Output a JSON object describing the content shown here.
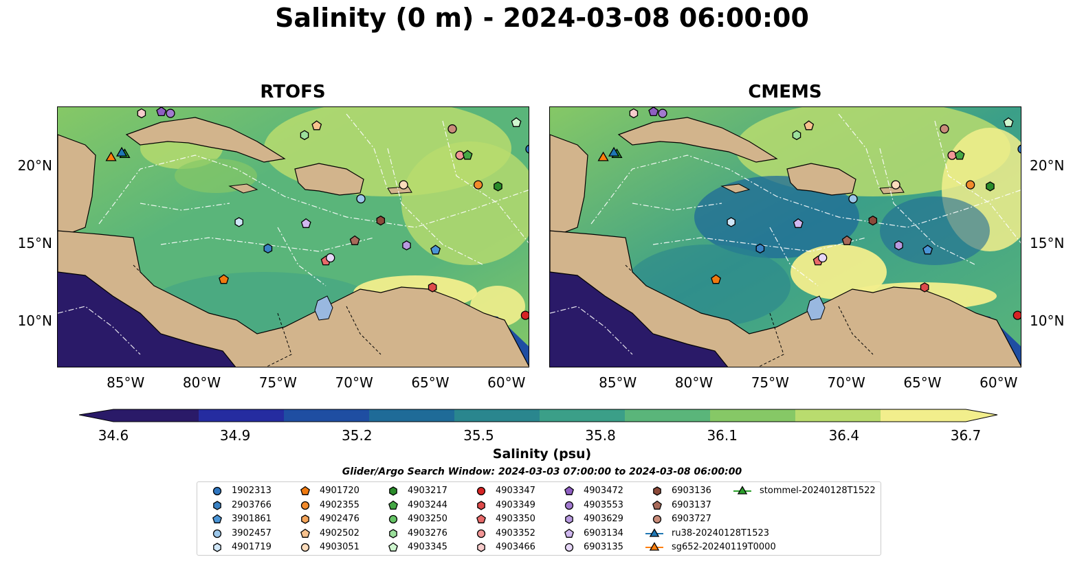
{
  "title": "Salinity (0 m) - 2024-03-08 06:00:00",
  "panels": [
    {
      "title": "RTOFS"
    },
    {
      "title": "CMEMS"
    }
  ],
  "axes": {
    "lon_labels": [
      "85°W",
      "80°W",
      "75°W",
      "70°W",
      "65°W",
      "60°W"
    ],
    "lat_labels": [
      "20°N",
      "15°N",
      "10°N"
    ],
    "extent": {
      "lon_min": -89.5,
      "lon_max": -58.5,
      "lat_min": 7.0,
      "lat_max": 23.8
    }
  },
  "colorbar": {
    "label": "Salinity (psu)",
    "ticks": [
      "34.6",
      "34.9",
      "35.2",
      "35.5",
      "35.8",
      "36.1",
      "36.4",
      "36.7"
    ],
    "vmin": 34.6,
    "vmax": 36.7,
    "colormap": [
      "#2a1a68",
      "#252ca0",
      "#1f4ea2",
      "#1f6b98",
      "#2a868e",
      "#3b9f88",
      "#5ab57a",
      "#86c866",
      "#b9dc6e",
      "#f2ee8c"
    ],
    "land_color": "#d2b48c",
    "lake_color": "#99b8e0"
  },
  "search_window": "Glider/Argo Search Window: 2024-03-03 07:00:00 to 2024-03-08 06:00:00",
  "legend": [
    {
      "label": "1902313",
      "marker": "circle",
      "color": "#2f76c0"
    },
    {
      "label": "2903766",
      "marker": "hexagon",
      "color": "#3a82c4"
    },
    {
      "label": "3901861",
      "marker": "pentagon",
      "color": "#4b95d6"
    },
    {
      "label": "3902457",
      "marker": "circle",
      "color": "#9cc7ea"
    },
    {
      "label": "4901719",
      "marker": "hexagon",
      "color": "#cfe6f7"
    },
    {
      "label": "4901720",
      "marker": "pentagon",
      "color": "#f07a10"
    },
    {
      "label": "4902355",
      "marker": "circle",
      "color": "#f28b2c"
    },
    {
      "label": "4902476",
      "marker": "hexagon",
      "color": "#f5a55a"
    },
    {
      "label": "4902502",
      "marker": "pentagon",
      "color": "#f7c28e"
    },
    {
      "label": "4903051",
      "marker": "circle",
      "color": "#fbdcbc"
    },
    {
      "label": "4903217",
      "marker": "hexagon",
      "color": "#2a8c2a"
    },
    {
      "label": "4903244",
      "marker": "pentagon",
      "color": "#45a845"
    },
    {
      "label": "4903250",
      "marker": "circle",
      "color": "#66c466"
    },
    {
      "label": "4903276",
      "marker": "hexagon",
      "color": "#9ce09c"
    },
    {
      "label": "4903345",
      "marker": "pentagon",
      "color": "#cff7cf"
    },
    {
      "label": "4903347",
      "marker": "circle",
      "color": "#d62424"
    },
    {
      "label": "4903349",
      "marker": "hexagon",
      "color": "#de4a4a"
    },
    {
      "label": "4903350",
      "marker": "pentagon",
      "color": "#e86a6a"
    },
    {
      "label": "4903352",
      "marker": "circle",
      "color": "#f29696"
    },
    {
      "label": "4903466",
      "marker": "hexagon",
      "color": "#f7cccc"
    },
    {
      "label": "4903472",
      "marker": "pentagon",
      "color": "#8f5fc2"
    },
    {
      "label": "4903553",
      "marker": "circle",
      "color": "#a27ad0"
    },
    {
      "label": "4903629",
      "marker": "hexagon",
      "color": "#b89ae0"
    },
    {
      "label": "6903134",
      "marker": "pentagon",
      "color": "#d0b8f0"
    },
    {
      "label": "6903135",
      "marker": "circle",
      "color": "#e6d6f7"
    },
    {
      "label": "6903136",
      "marker": "hexagon",
      "color": "#8c4a3a"
    },
    {
      "label": "6903137",
      "marker": "pentagon",
      "color": "#a86a5a"
    },
    {
      "label": "6903727",
      "marker": "circle",
      "color": "#c98c7a"
    },
    {
      "label": "ru38-20240128T1523",
      "marker": "triangle-line",
      "color": "#1f77b4"
    },
    {
      "label": "sg652-20240119T0000",
      "marker": "triangle-line",
      "color": "#ff7f0e"
    },
    {
      "label": "stommel-20240128T1522",
      "marker": "triangle-line",
      "color": "#2ca02c"
    }
  ],
  "floats": [
    {
      "id": "4903466",
      "lon": -84.0,
      "lat": 23.4,
      "marker": "hexagon",
      "color": "#f7cccc"
    },
    {
      "id": "4903472",
      "lon": -82.7,
      "lat": 23.5,
      "marker": "pentagon",
      "color": "#8f5fc2"
    },
    {
      "id": "4903553",
      "lon": -82.1,
      "lat": 23.4,
      "marker": "circle",
      "color": "#a27ad0"
    },
    {
      "id": "4903276",
      "lon": -73.3,
      "lat": 22.0,
      "marker": "hexagon",
      "color": "#9ce09c"
    },
    {
      "id": "4902502",
      "lon": -72.5,
      "lat": 22.6,
      "marker": "pentagon",
      "color": "#f7c28e"
    },
    {
      "id": "6903727",
      "lon": -63.6,
      "lat": 22.4,
      "marker": "circle",
      "color": "#c98c7a"
    },
    {
      "id": "4903345",
      "lon": -59.4,
      "lat": 22.8,
      "marker": "pentagon",
      "color": "#cff7cf"
    },
    {
      "id": "1902313",
      "lon": -58.5,
      "lat": 21.1,
      "marker": "circle",
      "color": "#2f76c0"
    },
    {
      "id": "4903352",
      "lon": -63.1,
      "lat": 20.7,
      "marker": "circle",
      "color": "#f29696"
    },
    {
      "id": "4903244",
      "lon": -62.6,
      "lat": 20.7,
      "marker": "pentagon",
      "color": "#45a845"
    },
    {
      "id": "4903051",
      "lon": -66.8,
      "lat": 18.8,
      "marker": "circle",
      "color": "#fbdcbc"
    },
    {
      "id": "4902355",
      "lon": -61.9,
      "lat": 18.8,
      "marker": "circle",
      "color": "#f28b2c"
    },
    {
      "id": "4903217",
      "lon": -60.6,
      "lat": 18.7,
      "marker": "hexagon",
      "color": "#2a8c2a"
    },
    {
      "id": "3902457",
      "lon": -69.6,
      "lat": 17.9,
      "marker": "circle",
      "color": "#9cc7ea"
    },
    {
      "id": "6903136",
      "lon": -68.3,
      "lat": 16.5,
      "marker": "hexagon",
      "color": "#8c4a3a"
    },
    {
      "id": "4901719",
      "lon": -77.6,
      "lat": 16.4,
      "marker": "hexagon",
      "color": "#cfe6f7"
    },
    {
      "id": "6903134",
      "lon": -73.2,
      "lat": 16.3,
      "marker": "pentagon",
      "color": "#d0b8f0"
    },
    {
      "id": "6903137",
      "lon": -70.0,
      "lat": 15.2,
      "marker": "pentagon",
      "color": "#a86a5a"
    },
    {
      "id": "4903629",
      "lon": -66.6,
      "lat": 14.9,
      "marker": "hexagon",
      "color": "#b89ae0"
    },
    {
      "id": "3901861",
      "lon": -64.7,
      "lat": 14.6,
      "marker": "pentagon",
      "color": "#4b95d6"
    },
    {
      "id": "2903766",
      "lon": -75.7,
      "lat": 14.7,
      "marker": "hexagon",
      "color": "#3a82c4"
    },
    {
      "id": "4903350",
      "lon": -71.9,
      "lat": 13.9,
      "marker": "pentagon",
      "color": "#e86a6a"
    },
    {
      "id": "6903135",
      "lon": -71.6,
      "lat": 14.1,
      "marker": "circle",
      "color": "#e6d6f7"
    },
    {
      "id": "4901720",
      "lon": -78.6,
      "lat": 12.7,
      "marker": "pentagon",
      "color": "#f07a10"
    },
    {
      "id": "4903349",
      "lon": -64.9,
      "lat": 12.2,
      "marker": "hexagon",
      "color": "#de4a4a"
    },
    {
      "id": "4903347",
      "lon": -58.8,
      "lat": 10.4,
      "marker": "circle",
      "color": "#d62424"
    }
  ],
  "gliders": [
    {
      "id": "sg652-20240119T0000",
      "lon": -86.0,
      "lat": 20.6,
      "color": "#ff7f0e"
    },
    {
      "id": "stommel-20240128T1522",
      "lon": -85.1,
      "lat": 20.8,
      "color": "#2ca02c"
    },
    {
      "id": "ru38-20240128T1523",
      "lon": -85.3,
      "lat": 20.9,
      "color": "#1f77b4"
    }
  ]
}
